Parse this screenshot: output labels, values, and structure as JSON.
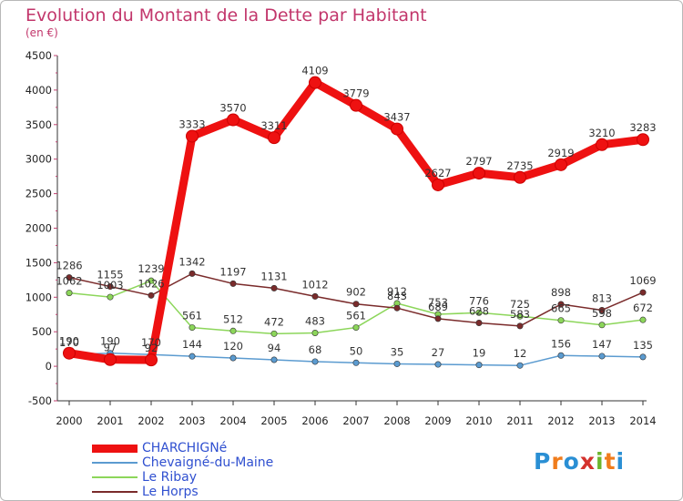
{
  "title": "Evolution du Montant de la Dette par Habitant",
  "subtitle": "(en €)",
  "logo": {
    "text": "Proxiti",
    "letter_colors": [
      "#2a8fd4",
      "#f07c1c",
      "#2a8fd4",
      "#d4322d",
      "#6cb52d",
      "#f07c1c",
      "#2a8fd4"
    ]
  },
  "chart_data": {
    "type": "line",
    "x": [
      2000,
      2001,
      2002,
      2003,
      2004,
      2005,
      2006,
      2007,
      2008,
      2009,
      2010,
      2011,
      2012,
      2013,
      2014
    ],
    "ylim": [
      -500,
      4500
    ],
    "yticks": [
      -500,
      0,
      500,
      1000,
      1500,
      2000,
      2500,
      3000,
      3500,
      4000,
      4500
    ],
    "grid": false,
    "legend_position": "bottom-left",
    "series": [
      {
        "name": "CHARCHIGNé",
        "color": "#ee1111",
        "values": [
          190,
          97,
          92,
          3333,
          3570,
          3311,
          4109,
          3779,
          3437,
          2627,
          2797,
          2735,
          2919,
          3210,
          3283
        ],
        "labels": [
          "190",
          "97",
          "92",
          "3333",
          "3570",
          "3311",
          "4109",
          "3779",
          "3437",
          "2627",
          "2797",
          "2735",
          "2919",
          "3210",
          "3283"
        ]
      },
      {
        "name": "Chevaigné-du-Maine",
        "color": "#5b9bd0",
        "values": [
          170,
          190,
          170,
          144,
          120,
          94,
          68,
          50,
          35,
          27,
          19,
          12,
          156,
          147,
          135
        ],
        "labels": [
          "170",
          "190",
          "170",
          "144",
          "120",
          "94",
          "68",
          "50",
          "35",
          "27",
          "19",
          "12",
          "156",
          "147",
          "135"
        ]
      },
      {
        "name": "Le Ribay",
        "color": "#8cd65a",
        "values": [
          1062,
          1003,
          1239,
          561,
          512,
          472,
          483,
          561,
          912,
          753,
          776,
          725,
          665,
          598,
          672
        ],
        "labels": [
          "1062",
          "1003",
          "1239",
          "561",
          "512",
          "472",
          "483",
          "561",
          "912",
          "753",
          "776",
          "725",
          "665",
          "598",
          "672"
        ]
      },
      {
        "name": "Le Horps",
        "color": "#7a2b2b",
        "values": [
          1286,
          1155,
          1026,
          1342,
          1197,
          1131,
          1012,
          902,
          843,
          689,
          628,
          583,
          898,
          813,
          1069
        ],
        "labels": [
          "1286",
          "1155",
          "1026",
          "1342",
          "1197",
          "1131",
          "1012",
          "902",
          "843",
          "689",
          "628",
          "583",
          "898",
          "813",
          "1069"
        ]
      }
    ]
  }
}
